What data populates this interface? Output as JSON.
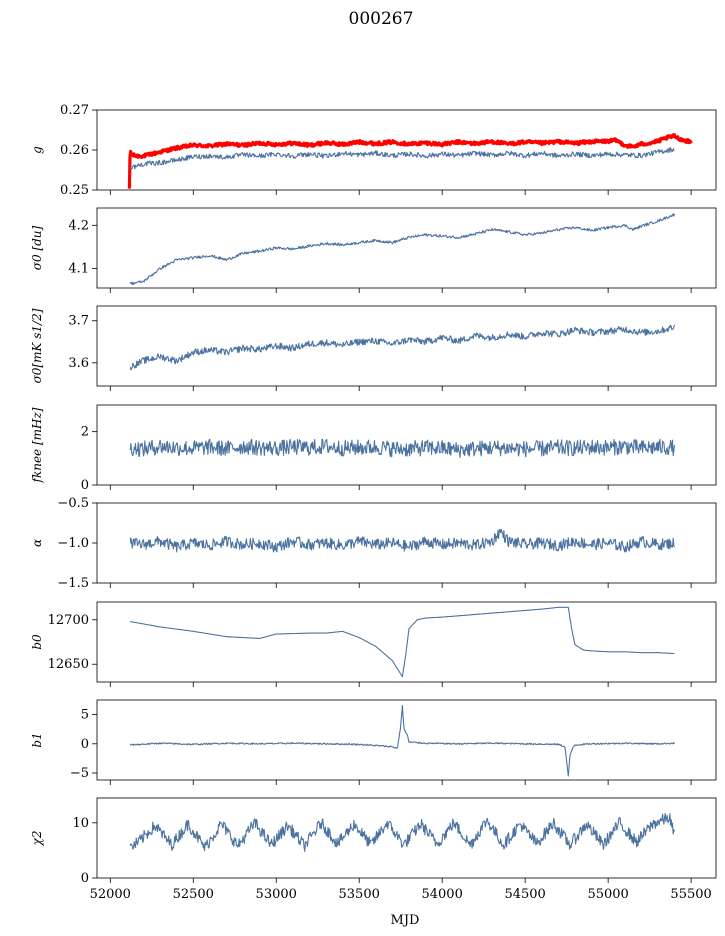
{
  "figure": {
    "title": "000267",
    "xlabel": "MJD"
  },
  "chart_data": [
    {
      "type": "line",
      "ylabel": "g",
      "ylim": [
        0.25,
        0.27
      ],
      "yticks": [
        "0.25",
        "0.26",
        "0.27"
      ],
      "series": [
        {
          "color": "#ff0000",
          "x": [
            52115,
            52120,
            52125,
            52150,
            52200,
            52300,
            52400,
            52500,
            52600,
            52700,
            52800,
            52900,
            53000,
            53100,
            53200,
            53300,
            53400,
            53500,
            53600,
            53700,
            53800,
            53900,
            54000,
            54100,
            54200,
            54300,
            54400,
            54500,
            54600,
            54700,
            54800,
            54900,
            55000,
            55050,
            55100,
            55150,
            55200,
            55250,
            55300,
            55350,
            55400,
            55420,
            55450,
            55480,
            55500
          ],
          "y": [
            0.25,
            0.2605,
            0.259,
            0.2585,
            0.2585,
            0.2595,
            0.2605,
            0.2612,
            0.261,
            0.2615,
            0.2612,
            0.2617,
            0.2614,
            0.2617,
            0.2612,
            0.2618,
            0.2614,
            0.262,
            0.2616,
            0.262,
            0.2615,
            0.2618,
            0.2614,
            0.262,
            0.2616,
            0.2621,
            0.2615,
            0.262,
            0.2617,
            0.2621,
            0.2617,
            0.2621,
            0.2622,
            0.2624,
            0.2612,
            0.2608,
            0.2615,
            0.2617,
            0.2622,
            0.263,
            0.2635,
            0.263,
            0.2625,
            0.2622,
            0.262
          ]
        },
        {
          "color": "#4c72a0",
          "x": [
            52120,
            52200,
            52300,
            52400,
            52500,
            52600,
            52700,
            52800,
            52900,
            53000,
            53100,
            53200,
            53300,
            53400,
            53500,
            53600,
            53700,
            53800,
            53900,
            54000,
            54100,
            54200,
            54300,
            54400,
            54500,
            54600,
            54700,
            54800,
            54900,
            55000,
            55100,
            55200,
            55300,
            55400
          ],
          "y": [
            0.2555,
            0.2565,
            0.2568,
            0.2575,
            0.2583,
            0.2585,
            0.2582,
            0.2588,
            0.2585,
            0.259,
            0.2585,
            0.259,
            0.2584,
            0.2592,
            0.2588,
            0.2592,
            0.2586,
            0.259,
            0.2585,
            0.259,
            0.2586,
            0.2592,
            0.2587,
            0.2592,
            0.2586,
            0.2592,
            0.2585,
            0.259,
            0.2586,
            0.259,
            0.2588,
            0.2586,
            0.2595,
            0.2602
          ]
        }
      ]
    },
    {
      "type": "line",
      "ylabel": "σ0 [du]",
      "ylim": [
        4.055,
        4.24
      ],
      "yticks": [
        "4.1",
        "4.2"
      ],
      "series": [
        {
          "color": "#4c72a0",
          "x": [
            52120,
            52200,
            52300,
            52400,
            52500,
            52600,
            52700,
            52800,
            52900,
            53000,
            53100,
            53200,
            53300,
            53400,
            53500,
            53600,
            53700,
            53800,
            53900,
            54000,
            54100,
            54200,
            54300,
            54400,
            54500,
            54600,
            54700,
            54800,
            54900,
            55000,
            55100,
            55150,
            55200,
            55300,
            55400
          ],
          "y": [
            4.065,
            4.07,
            4.1,
            4.12,
            4.125,
            4.13,
            4.12,
            4.135,
            4.14,
            4.148,
            4.145,
            4.152,
            4.158,
            4.155,
            4.16,
            4.165,
            4.16,
            4.172,
            4.178,
            4.175,
            4.172,
            4.18,
            4.19,
            4.185,
            4.178,
            4.182,
            4.19,
            4.195,
            4.188,
            4.195,
            4.2,
            4.19,
            4.198,
            4.21,
            4.225
          ]
        }
      ]
    },
    {
      "type": "line",
      "ylabel": "σ0[mK s1/2]",
      "ylim": [
        3.545,
        3.735
      ],
      "yticks": [
        "3.6",
        "3.7"
      ],
      "series": [
        {
          "color": "#4c72a0",
          "x": [
            52120,
            52200,
            52300,
            52400,
            52500,
            52600,
            52700,
            52800,
            52900,
            53000,
            53100,
            53200,
            53300,
            53400,
            53500,
            53600,
            53700,
            53800,
            53900,
            54000,
            54100,
            54200,
            54300,
            54400,
            54500,
            54600,
            54700,
            54800,
            54900,
            55000,
            55100,
            55200,
            55300,
            55400
          ],
          "y": [
            3.59,
            3.605,
            3.615,
            3.605,
            3.625,
            3.63,
            3.625,
            3.635,
            3.632,
            3.64,
            3.635,
            3.645,
            3.648,
            3.642,
            3.65,
            3.652,
            3.645,
            3.655,
            3.65,
            3.66,
            3.652,
            3.665,
            3.66,
            3.668,
            3.662,
            3.672,
            3.668,
            3.678,
            3.672,
            3.675,
            3.68,
            3.672,
            3.675,
            3.685
          ]
        }
      ]
    },
    {
      "type": "line",
      "ylabel": "fknee [mHz]",
      "ylim": [
        0,
        3
      ],
      "yticks": [
        "0",
        "2"
      ],
      "series": [
        {
          "color": "#4c72a0",
          "x": [
            52120,
            52200,
            52300,
            52400,
            52500,
            52600,
            52700,
            52800,
            52900,
            53000,
            53100,
            53200,
            53300,
            53400,
            53500,
            53600,
            53700,
            53800,
            53900,
            54000,
            54100,
            54200,
            54300,
            54400,
            54500,
            54600,
            54700,
            54800,
            54900,
            55000,
            55100,
            55200,
            55300,
            55400
          ],
          "y": [
            1.4,
            1.35,
            1.45,
            1.4,
            1.38,
            1.42,
            1.36,
            1.45,
            1.4,
            1.38,
            1.42,
            1.4,
            1.45,
            1.38,
            1.4,
            1.42,
            1.36,
            1.35,
            1.4,
            1.38,
            1.32,
            1.36,
            1.4,
            1.38,
            1.35,
            1.36,
            1.4,
            1.38,
            1.42,
            1.4,
            1.45,
            1.38,
            1.42,
            1.4
          ]
        }
      ]
    },
    {
      "type": "line",
      "ylabel": "α",
      "ylim": [
        -1.5,
        -0.5
      ],
      "yticks": [
        "−1.5",
        "−1.0",
        "−0.5"
      ],
      "series": [
        {
          "color": "#4c72a0",
          "x": [
            52120,
            52200,
            52300,
            52400,
            52500,
            52600,
            52700,
            52800,
            52900,
            53000,
            53100,
            53200,
            53300,
            53400,
            53500,
            53600,
            53700,
            53800,
            53900,
            54000,
            54100,
            54200,
            54300,
            54350,
            54400,
            54500,
            54600,
            54700,
            54800,
            54900,
            55000,
            55100,
            55200,
            55300,
            55400
          ],
          "y": [
            -1.0,
            -1.02,
            -0.98,
            -1.05,
            -1.0,
            -1.03,
            -0.98,
            -1.02,
            -1.0,
            -1.05,
            -0.98,
            -1.02,
            -1.0,
            -1.03,
            -0.98,
            -1.02,
            -1.0,
            -1.05,
            -0.98,
            -1.02,
            -1.0,
            -1.03,
            -0.98,
            -0.85,
            -0.98,
            -1.02,
            -1.0,
            -1.03,
            -0.98,
            -1.02,
            -1.0,
            -1.05,
            -0.98,
            -1.02,
            -1.0
          ]
        }
      ]
    },
    {
      "type": "line",
      "ylabel": "b0",
      "ylim": [
        12630,
        12720
      ],
      "yticks": [
        "12650",
        "12700"
      ],
      "series": [
        {
          "color": "#4c72a0",
          "x": [
            52120,
            52300,
            52500,
            52700,
            52900,
            53000,
            53200,
            53300,
            53400,
            53500,
            53600,
            53700,
            53740,
            53760,
            53780,
            53800,
            53850,
            53900,
            54000,
            54200,
            54400,
            54600,
            54700,
            54760,
            54780,
            54800,
            54850,
            54900,
            55000,
            55100,
            55200,
            55300,
            55400
          ],
          "y": [
            12698,
            12692,
            12687,
            12681,
            12679,
            12684,
            12685,
            12685,
            12687,
            12680,
            12670,
            12654,
            12642,
            12636,
            12660,
            12690,
            12700,
            12702,
            12703,
            12706,
            12709,
            12712,
            12714,
            12714,
            12690,
            12672,
            12666,
            12665,
            12664,
            12664,
            12663,
            12663,
            12662
          ]
        }
      ]
    },
    {
      "type": "line",
      "ylabel": "b1",
      "ylim": [
        -6.2,
        7.5
      ],
      "yticks": [
        "−5",
        "0",
        "5"
      ],
      "series": [
        {
          "color": "#4c72a0",
          "x": [
            52120,
            52300,
            52500,
            52700,
            52900,
            53100,
            53300,
            53500,
            53600,
            53700,
            53730,
            53750,
            53760,
            53770,
            53790,
            53800,
            53850,
            53900,
            54100,
            54300,
            54500,
            54700,
            54740,
            54760,
            54770,
            54790,
            54800,
            54900,
            55100,
            55300,
            55400
          ],
          "y": [
            -0.2,
            0.1,
            -0.1,
            0.1,
            0.0,
            0.1,
            0.0,
            -0.1,
            -0.3,
            -0.5,
            -0.8,
            3.0,
            6.5,
            2.5,
            1.5,
            0.3,
            0.2,
            0.1,
            0.0,
            0.1,
            0.0,
            -0.1,
            -0.5,
            -5.5,
            -2.0,
            -0.5,
            -0.2,
            0.0,
            0.1,
            0.0,
            0.1
          ]
        }
      ]
    },
    {
      "type": "line",
      "ylabel": "χ2",
      "ylim": [
        0,
        14.5
      ],
      "yticks": [
        "0",
        "10"
      ],
      "series": [
        {
          "color": "#4c72a0",
          "x": [
            52120,
            52170,
            52270,
            52370,
            52470,
            52570,
            52670,
            52770,
            52870,
            52970,
            53070,
            53170,
            53270,
            53370,
            53470,
            53570,
            53670,
            53770,
            53870,
            53970,
            54070,
            54170,
            54270,
            54370,
            54470,
            54570,
            54670,
            54770,
            54870,
            54970,
            55070,
            55170,
            55270,
            55370,
            55400
          ],
          "y": [
            5.5,
            6.5,
            9.5,
            6.0,
            9.8,
            5.5,
            9.8,
            5.8,
            10.0,
            6.0,
            9.5,
            5.8,
            10.0,
            6.2,
            9.8,
            6.0,
            10.0,
            6.0,
            9.8,
            6.2,
            10.0,
            6.0,
            10.5,
            6.0,
            9.8,
            6.2,
            10.0,
            6.0,
            9.8,
            6.0,
            10.0,
            6.5,
            9.8,
            11.0,
            7.5
          ]
        }
      ]
    }
  ],
  "xaxis": {
    "xlim": [
      51920,
      55650
    ],
    "ticks": [
      52000,
      52500,
      53000,
      53500,
      54000,
      54500,
      55000,
      55500
    ]
  }
}
